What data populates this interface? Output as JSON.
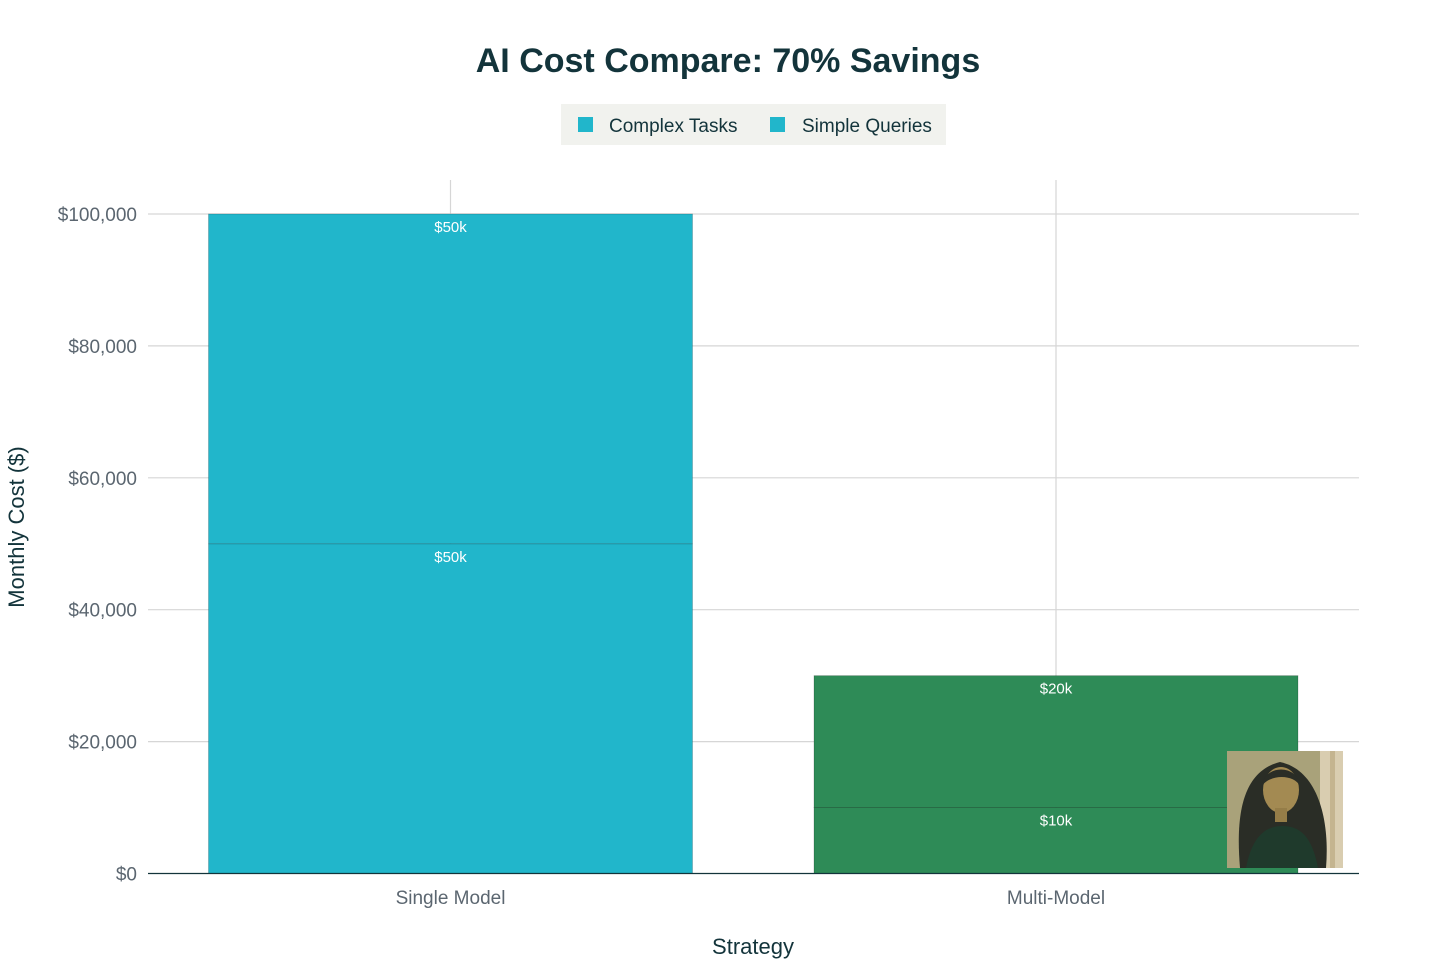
{
  "chart_data": {
    "type": "bar",
    "stacked": true,
    "title": "AI Cost Compare: 70% Savings",
    "xlabel": "Strategy",
    "ylabel": "Monthly Cost ($)",
    "categories": [
      "Single Model",
      "Multi-Model"
    ],
    "series": [
      {
        "name": "Complex Tasks",
        "values": [
          50000,
          10000
        ],
        "labels": [
          "$50k",
          "$10k"
        ],
        "colors": [
          "#21b6cb",
          "#2e8b57"
        ]
      },
      {
        "name": "Simple Queries",
        "values": [
          50000,
          20000
        ],
        "labels": [
          "$50k",
          "$20k"
        ],
        "colors": [
          "#21b6cb",
          "#2e8b57"
        ]
      }
    ],
    "legend": {
      "placement": "top-center",
      "items": [
        {
          "label": "Complex Tasks",
          "color": "#21b6cb"
        },
        {
          "label": "Simple Queries",
          "color": "#21b6cb"
        }
      ]
    },
    "ylim": [
      0,
      100000
    ],
    "yticks": [
      0,
      20000,
      40000,
      60000,
      80000,
      100000
    ],
    "ytick_labels": [
      "$0",
      "$20,000",
      "$40,000",
      "$60,000",
      "$80,000",
      "$100,000"
    ],
    "grid": true
  },
  "colors": {
    "title": "#13343b",
    "grid": "#d6d6d6",
    "legend_bg": "#f1f2ee",
    "teal": "#21b6cb",
    "green": "#2e8b57"
  },
  "overlay": {
    "icon": "portrait-thumbnail"
  }
}
